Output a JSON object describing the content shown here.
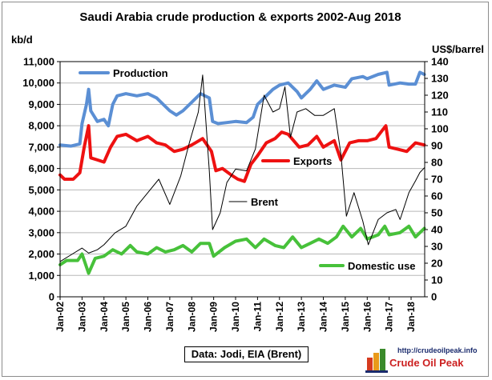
{
  "chart_data": {
    "type": "line",
    "title": "Saudi Arabia crude production & exports 2002-Aug 2018",
    "y_left_label": "kb/d",
    "y_right_label": "US$/barrel",
    "y_left_range": [
      0,
      11000
    ],
    "y_left_ticks": [
      "0",
      "1,000",
      "2,000",
      "3,000",
      "4,000",
      "5,000",
      "6,000",
      "7,000",
      "8,000",
      "9,000",
      "10,000",
      "11,000"
    ],
    "y_right_range": [
      0,
      140
    ],
    "y_right_ticks": [
      "0",
      "10",
      "20",
      "30",
      "40",
      "50",
      "60",
      "70",
      "80",
      "90",
      "100",
      "110",
      "120",
      "130",
      "140"
    ],
    "x_ticks": [
      "Jan-02",
      "Jan-03",
      "Jan-04",
      "Jan-05",
      "Jan-06",
      "Jan-07",
      "Jan-08",
      "Jan-09",
      "Jan-10",
      "Jan-11",
      "Jan-12",
      "Jan-13",
      "Jan-14",
      "Jan-15",
      "Jan-16",
      "Jan-17",
      "Jan-18"
    ],
    "x_range": [
      2002.0,
      2018.62
    ],
    "grid": true,
    "series": [
      {
        "name": "Production",
        "axis": "left",
        "color": "#5b8fd4",
        "points": [
          [
            2002.0,
            7100
          ],
          [
            2002.5,
            7050
          ],
          [
            2002.9,
            7150
          ],
          [
            2003.0,
            8100
          ],
          [
            2003.2,
            9000
          ],
          [
            2003.3,
            9700
          ],
          [
            2003.4,
            8700
          ],
          [
            2003.7,
            8200
          ],
          [
            2004.0,
            8300
          ],
          [
            2004.2,
            8000
          ],
          [
            2004.4,
            9000
          ],
          [
            2004.6,
            9400
          ],
          [
            2005.0,
            9500
          ],
          [
            2005.5,
            9400
          ],
          [
            2006.0,
            9500
          ],
          [
            2006.4,
            9300
          ],
          [
            2006.7,
            9000
          ],
          [
            2007.0,
            8700
          ],
          [
            2007.3,
            8500
          ],
          [
            2007.6,
            8700
          ],
          [
            2008.0,
            9100
          ],
          [
            2008.4,
            9500
          ],
          [
            2008.8,
            9300
          ],
          [
            2008.95,
            8200
          ],
          [
            2009.2,
            8100
          ],
          [
            2009.6,
            8150
          ],
          [
            2010.0,
            8200
          ],
          [
            2010.5,
            8150
          ],
          [
            2010.8,
            8400
          ],
          [
            2011.0,
            9000
          ],
          [
            2011.3,
            9300
          ],
          [
            2011.7,
            9700
          ],
          [
            2012.0,
            9900
          ],
          [
            2012.4,
            10000
          ],
          [
            2012.8,
            9600
          ],
          [
            2013.0,
            9300
          ],
          [
            2013.4,
            9700
          ],
          [
            2013.7,
            10100
          ],
          [
            2014.0,
            9700
          ],
          [
            2014.5,
            9900
          ],
          [
            2015.0,
            9800
          ],
          [
            2015.3,
            10200
          ],
          [
            2015.8,
            10300
          ],
          [
            2016.0,
            10200
          ],
          [
            2016.5,
            10400
          ],
          [
            2016.9,
            10500
          ],
          [
            2017.0,
            9900
          ],
          [
            2017.5,
            10000
          ],
          [
            2017.9,
            9950
          ],
          [
            2018.2,
            9950
          ],
          [
            2018.4,
            10500
          ],
          [
            2018.6,
            10400
          ]
        ]
      },
      {
        "name": "Exports",
        "axis": "left",
        "color": "#ee1111",
        "points": [
          [
            2002.0,
            5700
          ],
          [
            2002.2,
            5500
          ],
          [
            2002.6,
            5500
          ],
          [
            2002.9,
            5800
          ],
          [
            2003.1,
            7000
          ],
          [
            2003.3,
            8000
          ],
          [
            2003.4,
            6500
          ],
          [
            2003.7,
            6400
          ],
          [
            2004.0,
            6300
          ],
          [
            2004.3,
            7000
          ],
          [
            2004.6,
            7500
          ],
          [
            2005.0,
            7600
          ],
          [
            2005.5,
            7300
          ],
          [
            2006.0,
            7500
          ],
          [
            2006.4,
            7200
          ],
          [
            2006.8,
            7100
          ],
          [
            2007.2,
            6800
          ],
          [
            2007.6,
            6900
          ],
          [
            2008.0,
            7100
          ],
          [
            2008.5,
            7400
          ],
          [
            2008.9,
            6800
          ],
          [
            2009.1,
            5900
          ],
          [
            2009.4,
            6000
          ],
          [
            2009.8,
            5700
          ],
          [
            2010.1,
            5500
          ],
          [
            2010.4,
            5400
          ],
          [
            2010.7,
            6200
          ],
          [
            2011.0,
            6600
          ],
          [
            2011.4,
            7200
          ],
          [
            2011.8,
            7400
          ],
          [
            2012.1,
            7700
          ],
          [
            2012.4,
            7600
          ],
          [
            2012.9,
            7000
          ],
          [
            2013.3,
            7100
          ],
          [
            2013.7,
            7500
          ],
          [
            2014.0,
            7000
          ],
          [
            2014.5,
            7300
          ],
          [
            2014.8,
            6400
          ],
          [
            2015.2,
            7200
          ],
          [
            2015.6,
            7300
          ],
          [
            2016.0,
            7300
          ],
          [
            2016.4,
            7400
          ],
          [
            2016.85,
            8000
          ],
          [
            2017.0,
            7000
          ],
          [
            2017.4,
            6900
          ],
          [
            2017.8,
            6800
          ],
          [
            2018.2,
            7200
          ],
          [
            2018.6,
            7100
          ]
        ]
      },
      {
        "name": "Domestic use",
        "axis": "left",
        "color": "#47c13a",
        "points": [
          [
            2002.0,
            1500
          ],
          [
            2002.3,
            1700
          ],
          [
            2002.8,
            1700
          ],
          [
            2003.0,
            2000
          ],
          [
            2003.3,
            1100
          ],
          [
            2003.6,
            1800
          ],
          [
            2004.0,
            1900
          ],
          [
            2004.4,
            2200
          ],
          [
            2004.8,
            2000
          ],
          [
            2005.2,
            2400
          ],
          [
            2005.5,
            2100
          ],
          [
            2006.0,
            2000
          ],
          [
            2006.4,
            2300
          ],
          [
            2006.8,
            2100
          ],
          [
            2007.2,
            2200
          ],
          [
            2007.6,
            2400
          ],
          [
            2008.0,
            2100
          ],
          [
            2008.4,
            2500
          ],
          [
            2008.8,
            2500
          ],
          [
            2009.0,
            1900
          ],
          [
            2009.5,
            2300
          ],
          [
            2010.0,
            2600
          ],
          [
            2010.5,
            2700
          ],
          [
            2010.9,
            2300
          ],
          [
            2011.3,
            2700
          ],
          [
            2011.8,
            2400
          ],
          [
            2012.2,
            2300
          ],
          [
            2012.6,
            2800
          ],
          [
            2013.0,
            2300
          ],
          [
            2013.4,
            2500
          ],
          [
            2013.8,
            2700
          ],
          [
            2014.2,
            2500
          ],
          [
            2014.6,
            2800
          ],
          [
            2014.9,
            3300
          ],
          [
            2015.3,
            2800
          ],
          [
            2015.7,
            3200
          ],
          [
            2016.0,
            2700
          ],
          [
            2016.5,
            2900
          ],
          [
            2016.8,
            3300
          ],
          [
            2017.0,
            2900
          ],
          [
            2017.5,
            3000
          ],
          [
            2017.9,
            3300
          ],
          [
            2018.2,
            2800
          ],
          [
            2018.6,
            3200
          ]
        ]
      },
      {
        "name": "Brent",
        "axis": "right",
        "color": "#000000",
        "points": [
          [
            2002.0,
            21
          ],
          [
            2002.5,
            25
          ],
          [
            2003.0,
            29
          ],
          [
            2003.3,
            26
          ],
          [
            2003.7,
            28
          ],
          [
            2004.0,
            31
          ],
          [
            2004.5,
            38
          ],
          [
            2005.0,
            42
          ],
          [
            2005.5,
            54
          ],
          [
            2006.0,
            62
          ],
          [
            2006.5,
            70
          ],
          [
            2007.0,
            55
          ],
          [
            2007.5,
            72
          ],
          [
            2007.9,
            92
          ],
          [
            2008.3,
            110
          ],
          [
            2008.5,
            132
          ],
          [
            2008.8,
            75
          ],
          [
            2008.95,
            40
          ],
          [
            2009.3,
            50
          ],
          [
            2009.6,
            68
          ],
          [
            2010.0,
            76
          ],
          [
            2010.5,
            75
          ],
          [
            2010.9,
            88
          ],
          [
            2011.3,
            120
          ],
          [
            2011.7,
            110
          ],
          [
            2012.0,
            112
          ],
          [
            2012.25,
            125
          ],
          [
            2012.5,
            95
          ],
          [
            2012.8,
            110
          ],
          [
            2013.2,
            112
          ],
          [
            2013.6,
            108
          ],
          [
            2014.0,
            108
          ],
          [
            2014.5,
            112
          ],
          [
            2014.8,
            85
          ],
          [
            2015.05,
            48
          ],
          [
            2015.4,
            62
          ],
          [
            2015.8,
            45
          ],
          [
            2016.05,
            31
          ],
          [
            2016.5,
            46
          ],
          [
            2016.9,
            50
          ],
          [
            2017.3,
            52
          ],
          [
            2017.5,
            46
          ],
          [
            2017.9,
            62
          ],
          [
            2018.2,
            69
          ],
          [
            2018.4,
            74
          ],
          [
            2018.62,
            77
          ]
        ]
      }
    ],
    "legend_labels": [
      "Production",
      "Exports",
      "Brent",
      "Domestic use"
    ]
  },
  "source_text": "Data: Jodi, EIA (Brent)",
  "logo": {
    "url_text": "http://crudeoilpeak.info",
    "name_text": "Crude Oil Peak"
  }
}
